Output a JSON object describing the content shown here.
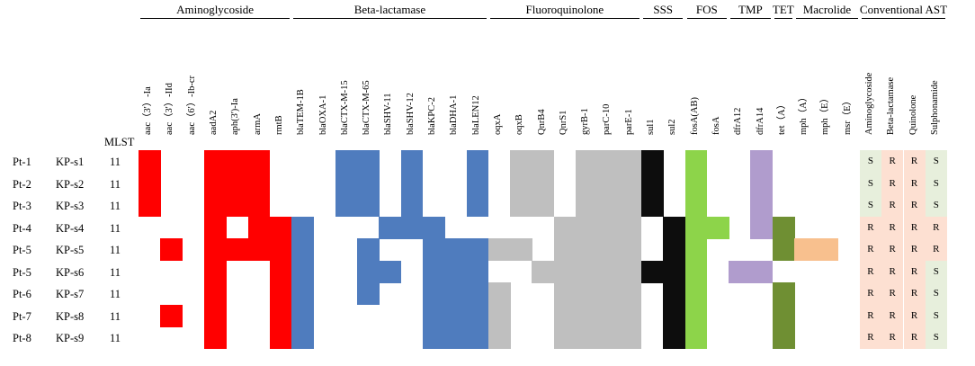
{
  "mlst_header": "MLST",
  "groups": [
    {
      "label": "Aminoglycoside",
      "cols": [
        0,
        6
      ]
    },
    {
      "label": "Beta-lactamase",
      "cols": [
        7,
        14
      ]
    },
    {
      "label": "Fluoroquinolone",
      "cols": [
        15,
        21
      ]
    },
    {
      "label": "SSS",
      "cols": [
        22,
        23
      ]
    },
    {
      "label": "FOS",
      "cols": [
        24,
        25
      ]
    },
    {
      "label": "TMP",
      "cols": [
        26,
        27
      ]
    },
    {
      "label": "TET",
      "cols": [
        28,
        28
      ]
    },
    {
      "label": "Macrolide",
      "cols": [
        29,
        31
      ]
    },
    {
      "label": "Conventional AST",
      "cols": [
        32,
        35
      ]
    }
  ],
  "genes": [
    "aac（3'）-Ia",
    "aac（3'）-IId",
    "aac（6'）-Ib-cr",
    "aadA2",
    "aph(3')-Ia",
    "armA",
    "rmtB",
    "blaTEM-1B",
    "blaOXA-1",
    "blaCTX-M-15",
    "blaCTX-M-65",
    "blaSHV-11",
    "blaSHV-12",
    "blaKPC-2",
    "blaDHA-1",
    "blaLEN12",
    "oqxA",
    "oqxB",
    "QnrB4",
    "QnrS1",
    "gyrB-1",
    "parC-10",
    "parE-1",
    "sul1",
    "sul2",
    "fosA(AB)",
    "fosA",
    "dfrA12",
    "dfrA14",
    "tet（A）",
    "mph（A）",
    "mph（E）",
    "msr（E）",
    "Aminoglycoside",
    "Beta-lactamase",
    "Quinolone",
    "Sulphonamide"
  ],
  "rows": [
    {
      "patient": "Pt-1",
      "isolate": "KP-s1",
      "mlst": "11",
      "ast": [
        "S",
        "R",
        "R",
        "S"
      ]
    },
    {
      "patient": "Pt-2",
      "isolate": "KP-s2",
      "mlst": "11",
      "ast": [
        "S",
        "R",
        "R",
        "S"
      ]
    },
    {
      "patient": "Pt-3",
      "isolate": "KP-s3",
      "mlst": "11",
      "ast": [
        "S",
        "R",
        "R",
        "S"
      ]
    },
    {
      "patient": "Pt-4",
      "isolate": "KP-s4",
      "mlst": "11",
      "ast": [
        "R",
        "R",
        "R",
        "R"
      ]
    },
    {
      "patient": "Pt-5",
      "isolate": "KP-s5",
      "mlst": "11",
      "ast": [
        "R",
        "R",
        "R",
        "R"
      ]
    },
    {
      "patient": "Pt-5",
      "isolate": "KP-s6",
      "mlst": "11",
      "ast": [
        "R",
        "R",
        "R",
        "S"
      ]
    },
    {
      "patient": "Pt-6",
      "isolate": "KP-s7",
      "mlst": "11",
      "ast": [
        "R",
        "R",
        "R",
        "S"
      ]
    },
    {
      "patient": "Pt-7",
      "isolate": "KP-s8",
      "mlst": "11",
      "ast": [
        "R",
        "R",
        "R",
        "S"
      ]
    },
    {
      "patient": "Pt-8",
      "isolate": "KP-s9",
      "mlst": "11",
      "ast": [
        "R",
        "R",
        "R",
        "S"
      ]
    }
  ],
  "colors": {
    "aminoglycoside": "#ff0000",
    "beta_lactamase": "#4f7cbe",
    "fluoroquinolone": "#bfbfbf",
    "sss": "#0d0d0d",
    "fos": "#8dd44a",
    "tmp": "#b09ccd",
    "tet": "#6f8f33",
    "macrolide": "#f8c08e",
    "ast_r_bg": "#fde0d2",
    "ast_s_bg": "#e7efdc"
  },
  "presence": [
    {
      "row": 0,
      "cols": [
        0,
        3,
        4,
        5,
        9,
        10,
        12,
        15,
        17,
        18,
        20,
        21,
        22,
        23,
        25,
        28
      ]
    },
    {
      "row": 1,
      "cols": [
        0,
        3,
        4,
        5,
        9,
        10,
        12,
        15,
        17,
        18,
        20,
        21,
        22,
        23,
        25,
        28
      ]
    },
    {
      "row": 2,
      "cols": [
        0,
        3,
        4,
        5,
        9,
        10,
        12,
        15,
        17,
        18,
        20,
        21,
        22,
        23,
        25,
        28
      ]
    },
    {
      "row": 3,
      "cols": [
        3,
        5,
        6,
        7,
        11,
        12,
        13,
        19,
        20,
        21,
        22,
        24,
        25,
        26,
        28,
        29
      ]
    },
    {
      "row": 4,
      "cols": [
        1,
        3,
        4,
        5,
        6,
        7,
        10,
        13,
        14,
        15,
        16,
        17,
        19,
        20,
        21,
        22,
        24,
        25,
        29,
        30,
        31
      ]
    },
    {
      "row": 5,
      "cols": [
        3,
        6,
        7,
        10,
        11,
        13,
        14,
        15,
        18,
        19,
        20,
        21,
        22,
        23,
        24,
        25,
        27,
        28
      ]
    },
    {
      "row": 6,
      "cols": [
        3,
        6,
        7,
        10,
        13,
        14,
        15,
        16,
        19,
        20,
        21,
        22,
        24,
        25,
        29
      ]
    },
    {
      "row": 7,
      "cols": [
        1,
        3,
        6,
        7,
        13,
        14,
        15,
        16,
        19,
        20,
        21,
        22,
        24,
        25,
        29
      ]
    },
    {
      "row": 8,
      "cols": [
        3,
        6,
        7,
        13,
        14,
        15,
        16,
        19,
        20,
        21,
        22,
        24,
        25,
        29
      ]
    }
  ]
}
